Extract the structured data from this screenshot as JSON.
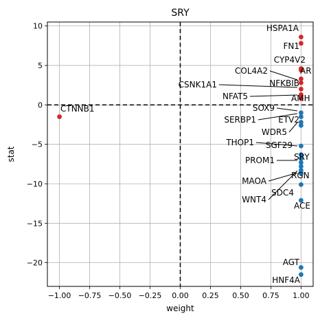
{
  "chart_data": {
    "type": "scatter",
    "title": "SRY",
    "xlabel": "weight",
    "ylabel": "stat",
    "xlim": [
      -1.1,
      1.1
    ],
    "ylim": [
      -23,
      10.5
    ],
    "xticks": [
      -1.0,
      -0.75,
      -0.5,
      -0.25,
      0.0,
      0.25,
      0.5,
      0.75,
      1.0
    ],
    "xtick_labels": [
      "−1.00",
      "−0.75",
      "−0.50",
      "−0.25",
      "0.00",
      "0.25",
      "0.50",
      "0.75",
      "1.00"
    ],
    "yticks": [
      -20,
      -15,
      -10,
      -5,
      0,
      5,
      10
    ],
    "ytick_labels": [
      "−20",
      "−15",
      "−10",
      "−5",
      "0",
      "5",
      "10"
    ],
    "grid": true,
    "reference_lines": {
      "x": 0,
      "y": 0,
      "style": "dashed"
    },
    "colors": {
      "positive": "#d62728",
      "negative": "#1f77b4"
    },
    "points": [
      {
        "label": "HSPA1A",
        "x": 1.0,
        "y": 8.6,
        "color": "#d62728"
      },
      {
        "label": "FN1",
        "x": 1.0,
        "y": 7.8,
        "color": "#d62728"
      },
      {
        "label": "CYP4V2",
        "x": 1.0,
        "y": 4.6,
        "color": "#d62728"
      },
      {
        "label": "AR",
        "x": 1.0,
        "y": 4.4,
        "color": "#d62728"
      },
      {
        "label": "COL4A2",
        "x": 1.0,
        "y": 3.3,
        "color": "#d62728"
      },
      {
        "label": "NFKBIB",
        "x": 1.0,
        "y": 2.8,
        "color": "#d62728"
      },
      {
        "label": "CSNK1A1",
        "x": 1.0,
        "y": 2.0,
        "color": "#d62728"
      },
      {
        "label": "NFAT5",
        "x": 1.0,
        "y": 1.3,
        "color": "#d62728"
      },
      {
        "label": "AMH",
        "x": 1.0,
        "y": 0.8,
        "color": "#d62728"
      },
      {
        "label": "SOX9",
        "x": 1.0,
        "y": -1.0,
        "color": "#1f77b4"
      },
      {
        "label": "SERBP1",
        "x": 1.0,
        "y": -1.5,
        "color": "#1f77b4"
      },
      {
        "label": "ETV2",
        "x": 1.0,
        "y": -2.2,
        "color": "#1f77b4"
      },
      {
        "label": "WDR5",
        "x": 1.0,
        "y": -2.6,
        "color": "#1f77b4"
      },
      {
        "label": "THOP1",
        "x": 1.0,
        "y": -5.2,
        "color": "#1f77b4"
      },
      {
        "label": "SGF29",
        "x": 1.0,
        "y": -6.3,
        "color": "#1f77b4"
      },
      {
        "label": "SRY",
        "x": 1.0,
        "y": -6.8,
        "color": "#1f77b4"
      },
      {
        "label": "PROM1",
        "x": 1.0,
        "y": -7.3,
        "color": "#1f77b4"
      },
      {
        "label": "RGN",
        "x": 1.0,
        "y": -7.8,
        "color": "#1f77b4"
      },
      {
        "label": "MAOA",
        "x": 1.0,
        "y": -8.3,
        "color": "#1f77b4"
      },
      {
        "label": "SDC4",
        "x": 1.0,
        "y": -8.7,
        "color": "#1f77b4"
      },
      {
        "label": "WNT4",
        "x": 1.0,
        "y": -8.6,
        "color": "#1f77b4"
      },
      {
        "label": "ACE",
        "x": 1.0,
        "y": -10.1,
        "color": "#1f77b4"
      },
      {
        "label": "",
        "x": 1.0,
        "y": -12.1,
        "color": "#1f77b4"
      },
      {
        "label": "AGT",
        "x": 1.0,
        "y": -20.6,
        "color": "#1f77b4"
      },
      {
        "label": "HNF4A",
        "x": 1.0,
        "y": -21.5,
        "color": "#1f77b4"
      },
      {
        "label": "CTNNB1",
        "x": -1.0,
        "y": -1.5,
        "color": "#d62728"
      }
    ]
  }
}
